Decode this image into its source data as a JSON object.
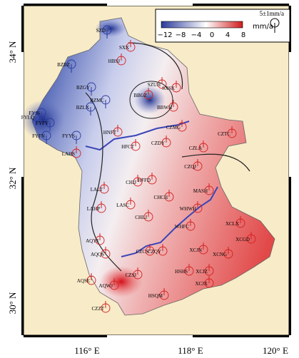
{
  "axes": {
    "lat_labels": [
      "34° N",
      "32° N",
      "30° N"
    ],
    "lon_labels": [
      "116° E",
      "118° E",
      "120° E"
    ]
  },
  "colorbar": {
    "ticks": [
      "−12",
      "−8",
      "−4",
      "0",
      "4",
      "8"
    ],
    "unit": "mm/a"
  },
  "scale_legend": "5±1mm/a",
  "stations": [
    "SZD",
    "SXX",
    "HBSJ",
    "BZBZ",
    "BZGY",
    "SZUH",
    "SXSX",
    "BZLX",
    "BZMC",
    "BBGZ",
    "BBWH",
    "FYJS",
    "FYLQ",
    "FYFY",
    "FYFN",
    "FYYS",
    "HNFT",
    "CZMG",
    "CZTC",
    "HFCT",
    "CZDY",
    "CZLA",
    "LAHS",
    "CZQJ",
    "HFFD",
    "CHIJ",
    "MASH",
    "LALT",
    "CHCH",
    "LASC",
    "LAHP",
    "CHLJ",
    "WHWH",
    "XCLX",
    "WHFC",
    "XCGD",
    "AQYJ",
    "AQQS",
    "CZCS",
    "CZQY",
    "XCJN",
    "XCNG",
    "AQSE",
    "AQWJ",
    "CZSJ",
    "HSHS",
    "XCJZ",
    "XCJX",
    "HSQM",
    "CZZT"
  ]
}
